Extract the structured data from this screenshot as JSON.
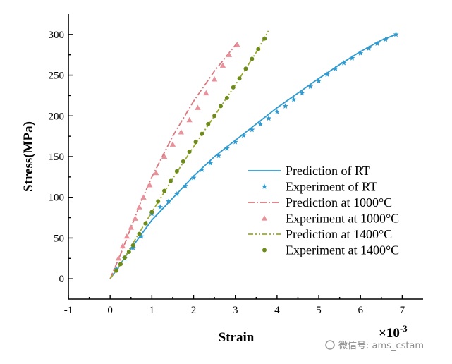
{
  "chart_data": {
    "type": "line",
    "xlabel": "Strain",
    "ylabel": "Stress(MPa)",
    "x_scale_label": "×10",
    "x_scale_exponent": "-3",
    "xlim": [
      -1,
      7.5
    ],
    "ylim": [
      -25,
      325
    ],
    "x_ticks": [
      -1,
      0,
      1,
      2,
      3,
      4,
      5,
      6,
      7
    ],
    "y_ticks": [
      0,
      50,
      100,
      150,
      200,
      250,
      300
    ],
    "legend_position": "lower-right",
    "series": [
      {
        "name": "Prediction of RT",
        "kind": "line",
        "style": "solid",
        "color": "#2e9ad0",
        "x": [
          0,
          0.2,
          0.4,
          0.6,
          0.8,
          1.0,
          1.5,
          2.0,
          2.5,
          3.0,
          3.5,
          4.0,
          4.5,
          5.0,
          5.5,
          6.0,
          6.5,
          6.85
        ],
        "y": [
          0,
          14,
          30,
          44,
          58,
          72,
          99,
          126,
          150,
          170,
          190,
          210,
          228,
          246,
          263,
          279,
          293,
          300
        ]
      },
      {
        "name": "Experiment of RT",
        "kind": "scatter",
        "marker": "star",
        "color": "#2e9ad0",
        "x": [
          0.15,
          0.35,
          0.55,
          0.75,
          1.0,
          1.2,
          1.4,
          1.6,
          1.8,
          2.0,
          2.2,
          2.4,
          2.6,
          2.8,
          3.0,
          3.2,
          3.4,
          3.6,
          3.8,
          4.0,
          4.2,
          4.4,
          4.6,
          4.8,
          5.0,
          5.2,
          5.4,
          5.6,
          5.8,
          6.0,
          6.2,
          6.4,
          6.6,
          6.85
        ],
        "y": [
          12,
          25,
          38,
          52,
          80,
          88,
          95,
          104,
          114,
          124,
          134,
          142,
          151,
          160,
          168,
          176,
          183,
          190,
          197,
          205,
          212,
          220,
          228,
          236,
          243,
          251,
          258,
          265,
          271,
          277,
          283,
          289,
          294,
          300
        ]
      },
      {
        "name": "Prediction at 1000°C",
        "kind": "line",
        "style": "dashdot",
        "color": "#d9787e",
        "x": [
          0,
          0.25,
          0.5,
          0.75,
          1.0,
          1.5,
          2.0,
          2.5,
          3.05
        ],
        "y": [
          0,
          30,
          63,
          96,
          125,
          175,
          218,
          255,
          290
        ]
      },
      {
        "name": "Experiment at 1000°C",
        "kind": "scatter",
        "marker": "triangle",
        "color": "#e8919a",
        "x": [
          0.2,
          0.3,
          0.4,
          0.5,
          0.6,
          0.7,
          0.8,
          0.95,
          1.1,
          1.3,
          1.5,
          1.7,
          1.9,
          2.1,
          2.3,
          2.5,
          2.7,
          2.85,
          3.05
        ],
        "y": [
          25,
          40,
          52,
          63,
          74,
          88,
          100,
          115,
          130,
          150,
          165,
          180,
          195,
          210,
          228,
          245,
          262,
          275,
          287
        ]
      },
      {
        "name": "Prediction at 1400°C",
        "kind": "line",
        "style": "dashdotdot",
        "color": "#9aaa2c",
        "x": [
          0,
          0.3,
          0.6,
          1.0,
          1.5,
          2.0,
          2.5,
          3.0,
          3.5,
          3.8
        ],
        "y": [
          0,
          22,
          48,
          82,
          123,
          162,
          200,
          238,
          278,
          305
        ]
      },
      {
        "name": "Experiment at 1400°C",
        "kind": "scatter",
        "marker": "circle",
        "color": "#6d8b19",
        "x": [
          0.15,
          0.25,
          0.35,
          0.45,
          0.55,
          0.7,
          0.85,
          1.0,
          1.15,
          1.3,
          1.45,
          1.6,
          1.75,
          1.9,
          2.05,
          2.2,
          2.35,
          2.5,
          2.65,
          2.8,
          2.95,
          3.1,
          3.25,
          3.4,
          3.55,
          3.7
        ],
        "y": [
          10,
          18,
          26,
          33,
          41,
          55,
          68,
          82,
          95,
          108,
          120,
          132,
          144,
          156,
          168,
          178,
          190,
          200,
          212,
          222,
          235,
          246,
          258,
          270,
          282,
          295
        ]
      }
    ]
  },
  "watermark": {
    "text": "微信号: ams_cstam"
  }
}
